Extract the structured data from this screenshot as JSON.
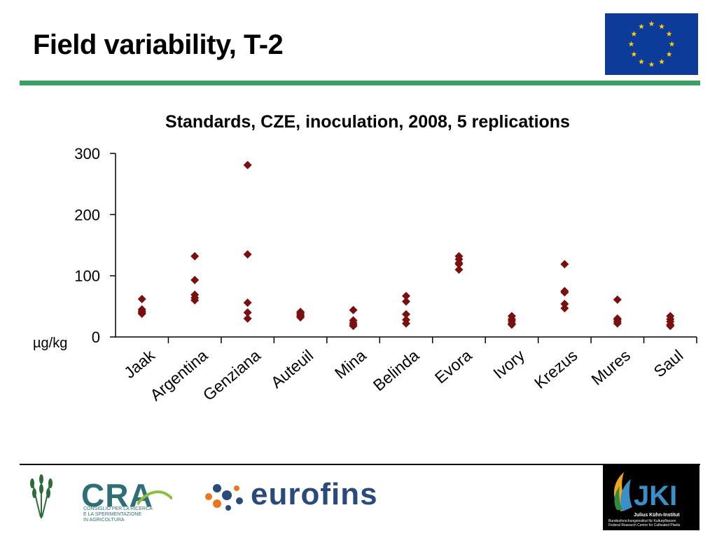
{
  "slide": {
    "title": "Field variability, T-2"
  },
  "colors": {
    "marker": "#7a0f0f",
    "green_rule": "#3aa064",
    "eu_blue": "#0d3b99",
    "eu_star": "#ffcc00"
  },
  "icons": [
    "eu-flag-icon",
    "wheat-logo-icon",
    "cra-logo",
    "eurofins-logo",
    "jki-logo"
  ],
  "chart_data": {
    "type": "scatter",
    "title": "Standards, CZE, inoculation, 2008, 5 replications",
    "ylabel": "µg/kg",
    "xlabel": "",
    "ylim": [
      0,
      300
    ],
    "yticks": [
      "0",
      "100",
      "200",
      "300"
    ],
    "grid": false,
    "legend": "none",
    "marker": "diamond",
    "categories": [
      "Jaak",
      "Argentina",
      "Genziana",
      "Auteuil",
      "Mina",
      "Belinda",
      "Evora",
      "Ivory",
      "Krezus",
      "Mures",
      "Saul"
    ],
    "values": [
      [
        62,
        45,
        42,
        40,
        38
      ],
      [
        132,
        93,
        69,
        64,
        60
      ],
      [
        281,
        135,
        56,
        40,
        30
      ],
      [
        41,
        39,
        36,
        34,
        32
      ],
      [
        44,
        27,
        23,
        20,
        18
      ],
      [
        67,
        58,
        37,
        28,
        22
      ],
      [
        132,
        127,
        121,
        119,
        110
      ],
      [
        34,
        29,
        26,
        22,
        20
      ],
      [
        119,
        75,
        73,
        54,
        47
      ],
      [
        61,
        30,
        28,
        25,
        22
      ],
      [
        34,
        29,
        25,
        20,
        18
      ]
    ]
  },
  "footer": {
    "cra": {
      "name": "CRA",
      "subtitle": [
        "CONSIGLIO PER LA RICERCA",
        "E LA SPERIMENTAZIONE",
        "IN AGRICOLTURA"
      ]
    },
    "eurofins": {
      "name": "eurofins"
    },
    "jki": {
      "name": "JKI",
      "fullname": "Julius Kühn-Institut",
      "subtitle": [
        "Bundesforschungsinstitut für Kulturpflanzen",
        "Federal Research Centre for Cultivated Plants"
      ]
    }
  }
}
